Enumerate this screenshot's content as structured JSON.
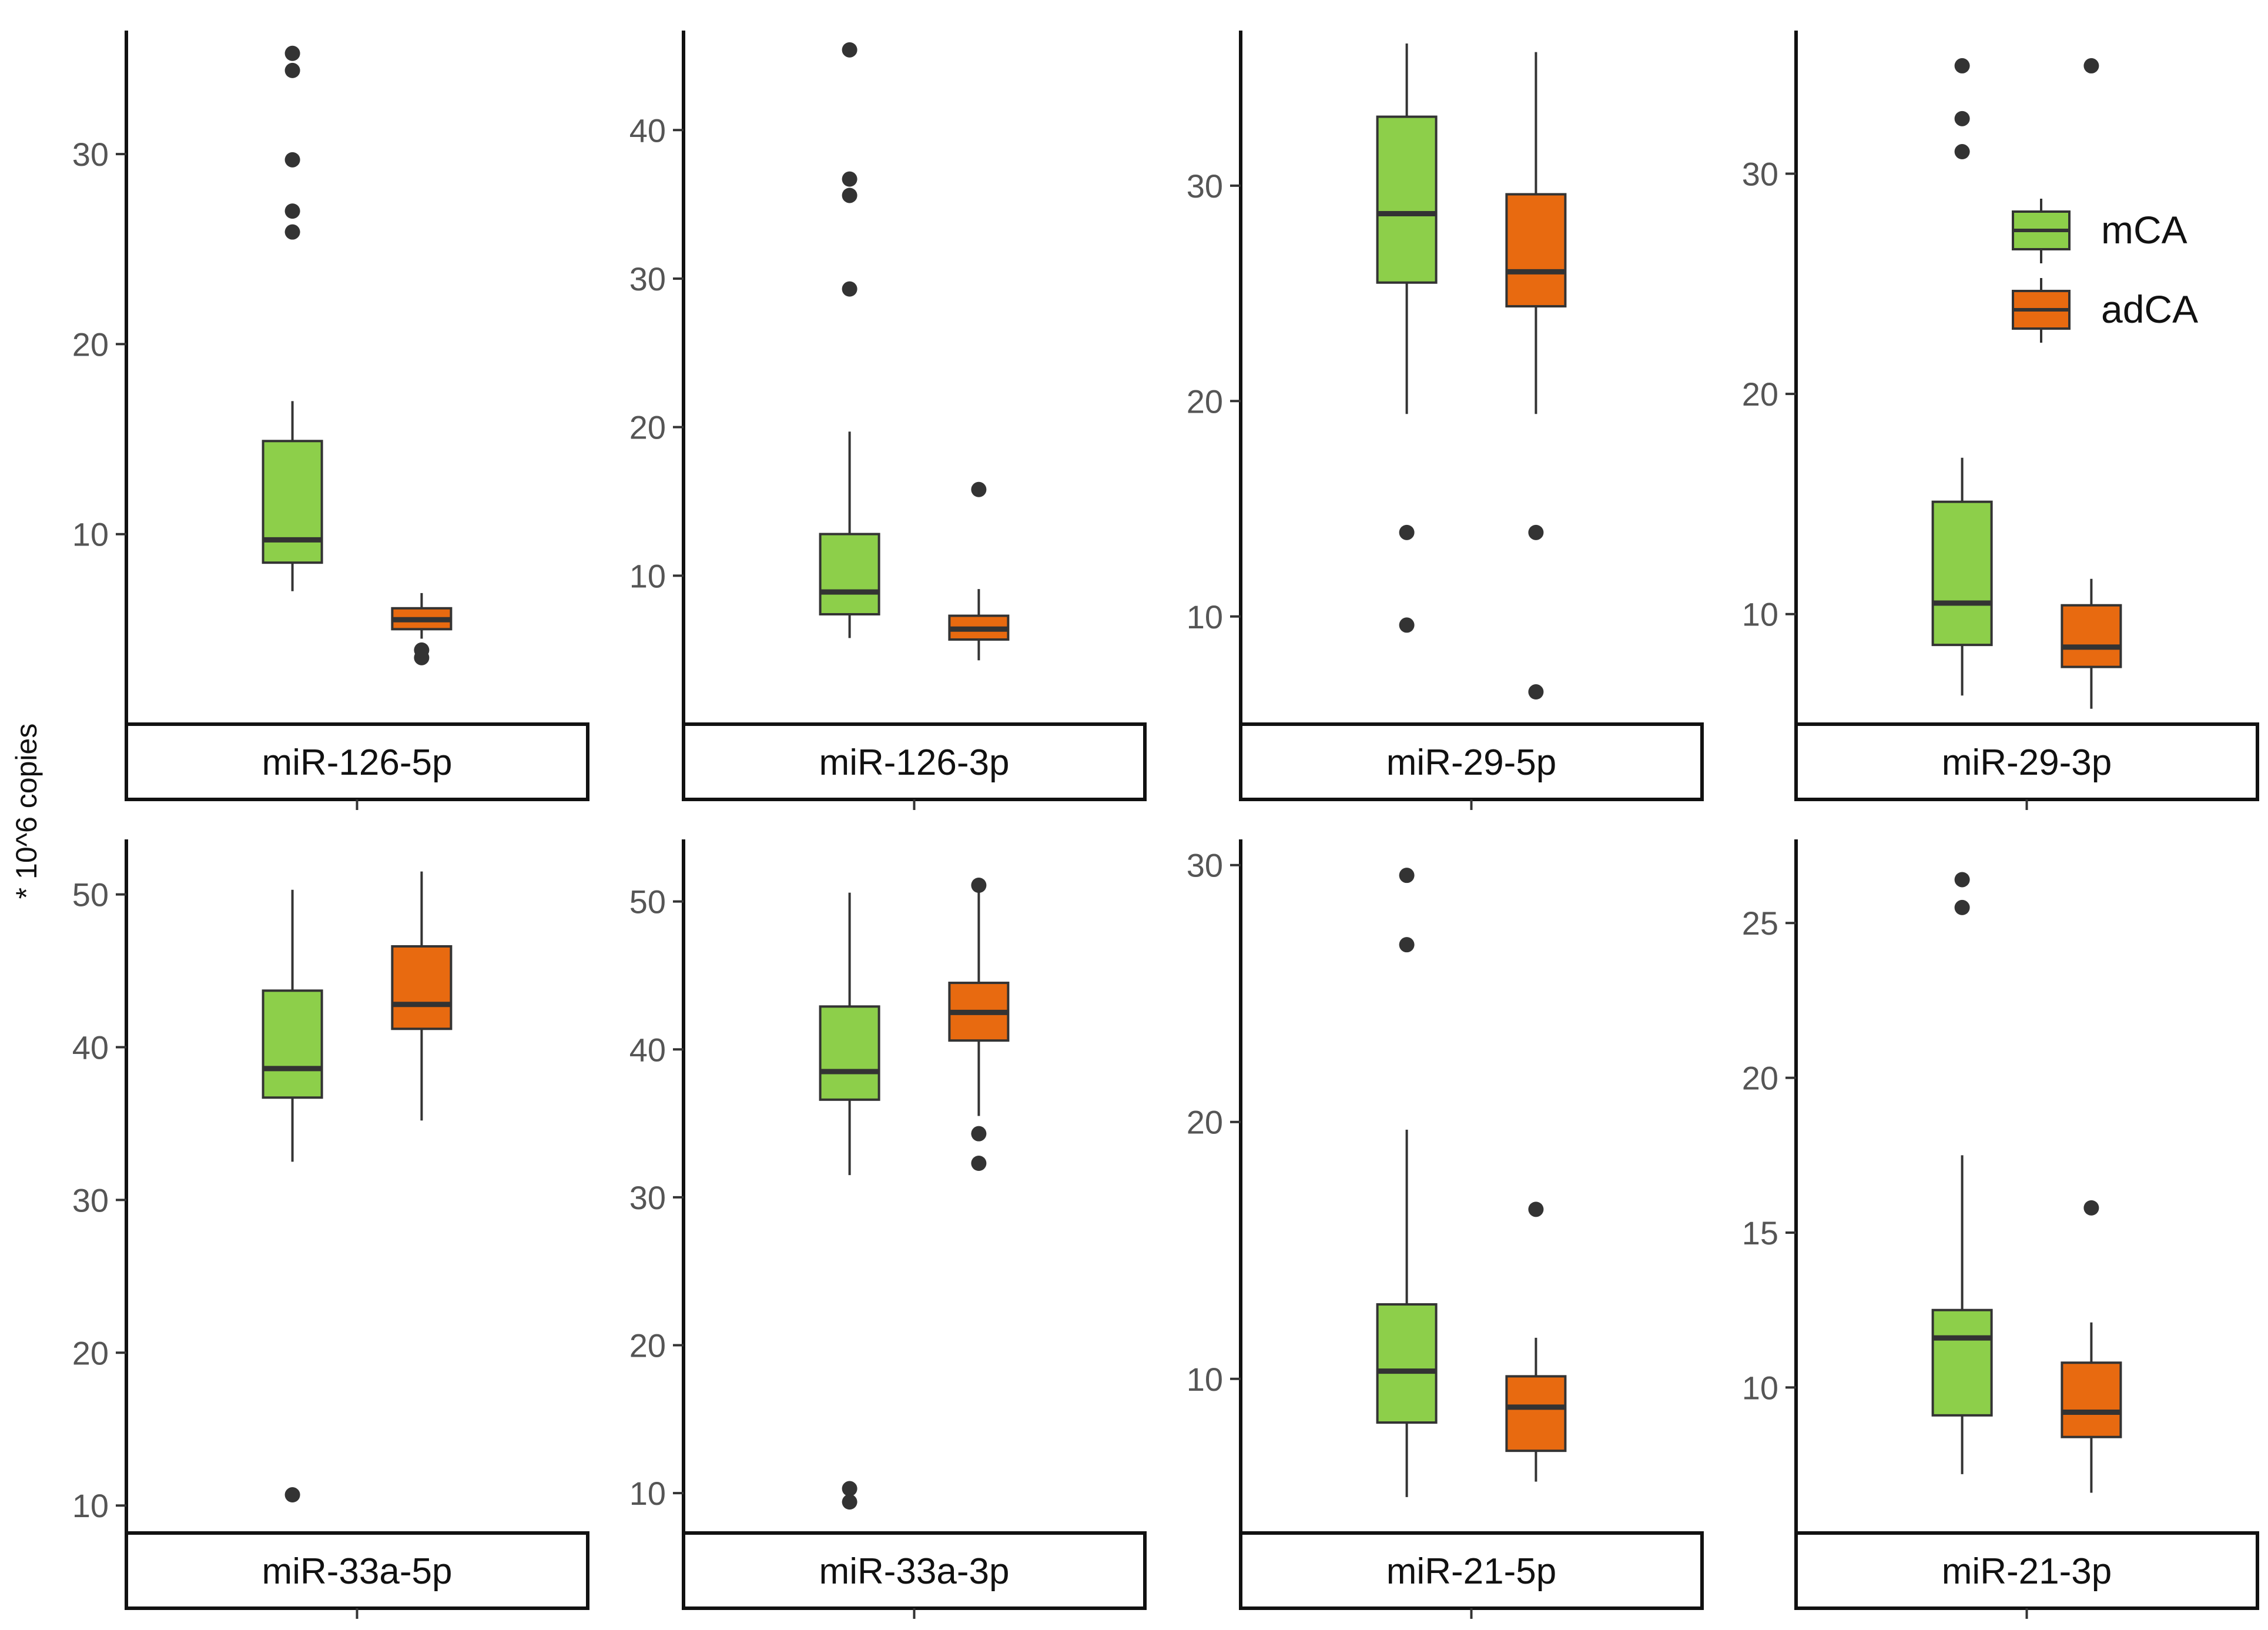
{
  "chart_data": {
    "type": "boxplot",
    "ylabel": "* 10^6 copies",
    "groups": [
      "mCA",
      "adCA"
    ],
    "colors": {
      "mCA": "#8dcf4a",
      "adCA": "#e86a10",
      "line": "#333333",
      "outlier": "#333333"
    },
    "legend": {
      "position": "top-right",
      "entries": [
        "mCA",
        "adCA"
      ]
    },
    "panels": [
      {
        "title": "miR-126-5p",
        "ylim": [
          0,
          36.5
        ],
        "yticks": [
          "10",
          "20",
          "30"
        ],
        "ytick_values": [
          10,
          20,
          30
        ],
        "boxes": [
          {
            "group": "mCA",
            "min": 7,
            "q1": 8.5,
            "median": 9.7,
            "q3": 14.9,
            "max": 17,
            "outliers": [
              35.3,
              34.4,
              29.7,
              27,
              25.9
            ]
          },
          {
            "group": "adCA",
            "min": 4.5,
            "q1": 5.0,
            "median": 5.5,
            "q3": 6.1,
            "max": 6.9,
            "outliers": [
              3.5,
              3.9
            ]
          }
        ]
      },
      {
        "title": "miR-126-3p",
        "ylim": [
          0,
          46.7
        ],
        "yticks": [
          "10",
          "20",
          "30",
          "40"
        ],
        "ytick_values": [
          10,
          20,
          30,
          40
        ],
        "boxes": [
          {
            "group": "mCA",
            "min": 5.8,
            "q1": 7.4,
            "median": 8.9,
            "q3": 12.8,
            "max": 19.7,
            "outliers": [
              45.4,
              36.7,
              35.6,
              29.3
            ]
          },
          {
            "group": "adCA",
            "min": 4.3,
            "q1": 5.7,
            "median": 6.4,
            "q3": 7.3,
            "max": 9.1,
            "outliers": [
              15.8
            ]
          }
        ]
      },
      {
        "title": "miR-29-5p",
        "ylim": [
          5,
          37.2
        ],
        "yticks": [
          "10",
          "20",
          "30"
        ],
        "ytick_values": [
          10,
          20,
          30
        ],
        "boxes": [
          {
            "group": "mCA",
            "min": 19.4,
            "q1": 25.5,
            "median": 28.7,
            "q3": 33.2,
            "max": 36.6,
            "outliers": [
              13.9,
              9.6
            ]
          },
          {
            "group": "adCA",
            "min": 19.4,
            "q1": 24.4,
            "median": 26.0,
            "q3": 29.6,
            "max": 36.2,
            "outliers": [
              13.9,
              6.5
            ]
          }
        ]
      },
      {
        "title": "miR-29-3p",
        "ylim": [
          5,
          36.5
        ],
        "yticks": [
          "10",
          "20",
          "30"
        ],
        "ytick_values": [
          10,
          20,
          30
        ],
        "boxes": [
          {
            "group": "mCA",
            "min": 6.3,
            "q1": 8.6,
            "median": 10.5,
            "q3": 15.1,
            "max": 17.1,
            "outliers": [
              34.9,
              32.5,
              31
            ]
          },
          {
            "group": "adCA",
            "min": 5.7,
            "q1": 7.6,
            "median": 8.5,
            "q3": 10.4,
            "max": 11.6,
            "outliers": [
              34.9
            ]
          }
        ]
      },
      {
        "title": "miR-33a-5p",
        "ylim": [
          8.2,
          53.6
        ],
        "yticks": [
          "10",
          "20",
          "30",
          "40",
          "50"
        ],
        "ytick_values": [
          10,
          20,
          30,
          40,
          50
        ],
        "boxes": [
          {
            "group": "mCA",
            "min": 32.5,
            "q1": 36.7,
            "median": 38.6,
            "q3": 43.7,
            "max": 50.3,
            "outliers": [
              10.7
            ]
          },
          {
            "group": "adCA",
            "min": 35.2,
            "q1": 41.2,
            "median": 42.8,
            "q3": 46.6,
            "max": 51.5,
            "outliers": []
          }
        ]
      },
      {
        "title": "miR-33a-3p",
        "ylim": [
          7.3,
          54.2
        ],
        "yticks": [
          "10",
          "20",
          "30",
          "40",
          "50"
        ],
        "ytick_values": [
          10,
          20,
          30,
          40,
          50
        ],
        "boxes": [
          {
            "group": "mCA",
            "min": 31.5,
            "q1": 36.6,
            "median": 38.5,
            "q3": 42.9,
            "max": 50.6,
            "outliers": [
              10.3,
              9.4
            ]
          },
          {
            "group": "adCA",
            "min": 35.5,
            "q1": 40.6,
            "median": 42.5,
            "q3": 44.5,
            "max": 51.4,
            "outliers": [
              51.1,
              34.3,
              32.3
            ]
          }
        ]
      },
      {
        "title": "miR-21-5p",
        "ylim": [
          4,
          31
        ],
        "yticks": [
          "10",
          "20",
          "30"
        ],
        "ytick_values": [
          10,
          20,
          30
        ],
        "boxes": [
          {
            "group": "mCA",
            "min": 5.4,
            "q1": 8.3,
            "median": 10.3,
            "q3": 12.9,
            "max": 19.7,
            "outliers": [
              29.6,
              26.9
            ]
          },
          {
            "group": "adCA",
            "min": 6.0,
            "q1": 7.2,
            "median": 8.9,
            "q3": 10.1,
            "max": 11.6,
            "outliers": [
              16.6
            ]
          }
        ]
      },
      {
        "title": "miR-21-3p",
        "ylim": [
          5.3,
          27.7
        ],
        "yticks": [
          "10",
          "15",
          "20",
          "25"
        ],
        "ytick_values": [
          10,
          15,
          20,
          25
        ],
        "boxes": [
          {
            "group": "mCA",
            "min": 7.2,
            "q1": 9.1,
            "median": 11.6,
            "q3": 12.5,
            "max": 17.5,
            "outliers": [
              26.4,
              25.5
            ]
          },
          {
            "group": "adCA",
            "min": 6.6,
            "q1": 8.4,
            "median": 9.2,
            "q3": 10.8,
            "max": 12.1,
            "outliers": [
              15.8
            ]
          }
        ]
      }
    ]
  }
}
